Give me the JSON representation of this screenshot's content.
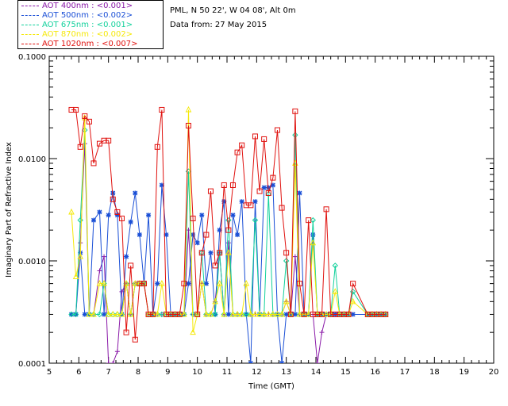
{
  "legend": [
    {
      "label": "AOT  400nm : <0.001>",
      "color": "#8a1aa8"
    },
    {
      "label": "AOT  500nm : <0.002>",
      "color": "#1a4fd6"
    },
    {
      "label": "AOT  675nm : <0.001>",
      "color": "#13d19c"
    },
    {
      "label": "AOT  870nm : <0.002>",
      "color": "#f5e90a"
    },
    {
      "label": "AOT 1020nm : <0.007>",
      "color": "#e0120f"
    }
  ],
  "info": {
    "site": "PML, N 50 22', W 04 08', Alt 0m",
    "date_line": "Data from: 27 May 2015"
  },
  "chart_data": {
    "type": "line",
    "xlabel": "Time (GMT)",
    "ylabel": "Imaginary Part of Refractive Index",
    "xlim": [
      5,
      20
    ],
    "ylim": [
      0.0001,
      0.1
    ],
    "y_scale": "log",
    "x_ticks": [
      "5",
      "6",
      "7",
      "8",
      "9",
      "10",
      "11",
      "12",
      "13",
      "14",
      "15",
      "16",
      "17",
      "18",
      "19",
      "20"
    ],
    "y_ticks": [
      "0.0001",
      "0.0010",
      "0.0100",
      "0.1000"
    ],
    "series": [
      {
        "name": "AOT  400nm : <0.001>",
        "marker": "plus",
        "color": "#8a1aa8",
        "x": [
          5.75,
          5.9,
          6.05,
          6.2,
          6.35,
          6.5,
          6.7,
          6.85,
          7.0,
          7.15,
          7.3,
          7.45,
          7.6,
          7.75,
          7.9,
          8.05,
          8.2,
          8.35,
          8.5,
          8.65,
          8.8,
          8.95,
          9.1,
          9.25,
          9.4,
          9.55,
          9.7,
          9.85,
          10.0,
          10.15,
          10.3,
          10.45,
          10.6,
          10.75,
          10.9,
          11.05,
          11.2,
          11.35,
          11.5,
          11.65,
          11.8,
          11.95,
          12.1,
          12.25,
          12.4,
          12.55,
          12.7,
          12.85,
          13.0,
          13.15,
          13.3,
          13.45,
          13.6,
          13.75,
          13.9,
          14.05,
          14.2,
          14.35,
          14.5,
          14.65,
          14.8,
          14.95,
          15.1,
          15.25,
          15.75,
          15.9,
          16.05,
          16.2,
          16.35
        ],
        "y": [
          0.0003,
          0.0003,
          0.0015,
          0.014,
          0.0003,
          0.0003,
          0.0008,
          0.0011,
          0.0001,
          0.0001,
          0.00013,
          0.0005,
          0.0006,
          0.0003,
          0.0006,
          0.0006,
          0.0006,
          0.0003,
          0.0003,
          0.0003,
          0.0003,
          0.0003,
          0.0003,
          0.0003,
          0.0003,
          0.0003,
          0.002,
          0.0003,
          0.0003,
          0.0006,
          0.0003,
          0.0003,
          0.0004,
          0.0012,
          0.0003,
          0.0015,
          0.0003,
          0.0003,
          0.0003,
          0.0003,
          0.0003,
          0.0003,
          0.0003,
          0.0003,
          0.0003,
          0.0003,
          0.0003,
          0.0003,
          0.0004,
          0.0003,
          0.0011,
          0.0003,
          0.0003,
          0.0003,
          0.0003,
          0.0001,
          0.0002,
          0.0003,
          0.0003,
          0.0003,
          0.0003,
          0.0003,
          0.0003,
          0.0003,
          0.0003,
          0.0003,
          0.0003,
          0.0003,
          0.0003
        ]
      },
      {
        "name": "AOT  500nm : <0.002>",
        "marker": "asterisk",
        "color": "#1a4fd6",
        "x": [
          5.75,
          5.9,
          6.05,
          6.2,
          6.35,
          6.5,
          6.7,
          6.85,
          7.0,
          7.15,
          7.3,
          7.45,
          7.6,
          7.75,
          7.9,
          8.05,
          8.2,
          8.35,
          8.5,
          8.65,
          8.8,
          8.95,
          9.1,
          9.25,
          9.4,
          9.55,
          9.7,
          9.85,
          10.0,
          10.15,
          10.3,
          10.45,
          10.6,
          10.75,
          10.9,
          11.05,
          11.2,
          11.35,
          11.5,
          11.65,
          11.8,
          11.95,
          12.1,
          12.25,
          12.4,
          12.55,
          12.7,
          12.85,
          13.0,
          13.15,
          13.3,
          13.45,
          13.6,
          13.75,
          13.9,
          14.05,
          14.2,
          14.35,
          14.5,
          14.65,
          14.8,
          14.95,
          15.1,
          15.25,
          15.75,
          15.9,
          16.05,
          16.2,
          16.35
        ],
        "y": [
          0.0003,
          0.0003,
          0.0012,
          0.0003,
          0.0003,
          0.0025,
          0.003,
          0.0003,
          0.0028,
          0.0046,
          0.0028,
          0.0003,
          0.0011,
          0.0024,
          0.0046,
          0.0018,
          0.0006,
          0.0028,
          0.0003,
          0.0006,
          0.0055,
          0.0018,
          0.0003,
          0.0003,
          0.0003,
          0.0003,
          0.0006,
          0.0018,
          0.0015,
          0.0028,
          0.0006,
          0.0012,
          0.0003,
          0.002,
          0.0038,
          0.0003,
          0.0028,
          0.0018,
          0.0038,
          0.0003,
          0.0001,
          0.0038,
          0.0003,
          0.0052,
          0.0052,
          0.0055,
          0.0003,
          0.0001,
          0.0003,
          0.0003,
          0.0003,
          0.0046,
          0.0003,
          0.0003,
          0.0018,
          0.0003,
          0.0003,
          0.0003,
          0.0003,
          0.0003,
          0.0003,
          0.0003,
          0.0003,
          0.0003,
          0.0003,
          0.0003,
          0.0003,
          0.0003,
          0.0003
        ]
      },
      {
        "name": "AOT  675nm : <0.001>",
        "marker": "diamond",
        "color": "#13d19c",
        "x": [
          5.75,
          5.9,
          6.05,
          6.2,
          6.35,
          6.5,
          6.7,
          6.85,
          7.0,
          7.15,
          7.3,
          7.45,
          7.6,
          7.75,
          7.9,
          8.05,
          8.2,
          8.35,
          8.5,
          8.65,
          8.8,
          8.95,
          9.1,
          9.25,
          9.4,
          9.55,
          9.7,
          9.85,
          10.0,
          10.15,
          10.3,
          10.45,
          10.6,
          10.75,
          10.9,
          11.05,
          11.2,
          11.35,
          11.5,
          11.65,
          11.8,
          11.95,
          12.1,
          12.25,
          12.4,
          12.55,
          12.7,
          12.85,
          13.0,
          13.15,
          13.3,
          13.45,
          13.6,
          13.75,
          13.9,
          14.05,
          14.2,
          14.35,
          14.5,
          14.65,
          14.8,
          14.95,
          15.1,
          15.25,
          15.75,
          15.9,
          16.05,
          16.2,
          16.35
        ],
        "y": [
          0.0003,
          0.0003,
          0.0025,
          0.019,
          0.0003,
          0.0003,
          0.0003,
          0.0006,
          0.0003,
          0.0003,
          0.0003,
          0.0003,
          0.0006,
          0.0003,
          0.0006,
          0.0006,
          0.0006,
          0.0003,
          0.0003,
          0.0003,
          0.0003,
          0.0003,
          0.0003,
          0.0003,
          0.0003,
          0.0003,
          0.0075,
          0.0003,
          0.0003,
          0.0012,
          0.0003,
          0.0003,
          0.0003,
          0.0012,
          0.0003,
          0.0025,
          0.0003,
          0.0003,
          0.0003,
          0.0003,
          0.0003,
          0.0025,
          0.0003,
          0.0003,
          0.0045,
          0.0003,
          0.0003,
          0.0003,
          0.001,
          0.0003,
          0.017,
          0.0003,
          0.0003,
          0.0003,
          0.0025,
          0.0003,
          0.0003,
          0.0003,
          0.0003,
          0.0009,
          0.0003,
          0.0003,
          0.0003,
          0.0005,
          0.0003,
          0.0003,
          0.0003,
          0.0003,
          0.0003
        ]
      },
      {
        "name": "AOT  870nm : <0.002>",
        "marker": "triangle",
        "color": "#f5e90a",
        "x": [
          5.75,
          5.9,
          6.05,
          6.2,
          6.35,
          6.5,
          6.7,
          6.85,
          7.0,
          7.15,
          7.3,
          7.45,
          7.6,
          7.75,
          7.9,
          8.05,
          8.2,
          8.35,
          8.5,
          8.65,
          8.8,
          8.95,
          9.1,
          9.25,
          9.4,
          9.55,
          9.7,
          9.85,
          10.0,
          10.15,
          10.3,
          10.45,
          10.6,
          10.75,
          10.9,
          11.05,
          11.2,
          11.35,
          11.5,
          11.65,
          11.8,
          11.95,
          12.1,
          12.25,
          12.4,
          12.55,
          12.7,
          12.85,
          13.0,
          13.15,
          13.3,
          13.45,
          13.6,
          13.75,
          13.9,
          14.05,
          14.2,
          14.35,
          14.5,
          14.65,
          14.8,
          14.95,
          15.1,
          15.25,
          15.75,
          15.9,
          16.05,
          16.2,
          16.35
        ],
        "y": [
          0.003,
          0.0007,
          0.0011,
          0.025,
          0.0003,
          0.0003,
          0.0006,
          0.0006,
          0.0003,
          0.0003,
          0.0003,
          0.0003,
          0.0006,
          0.0003,
          0.0006,
          0.0006,
          0.0006,
          0.0003,
          0.0003,
          0.0003,
          0.0006,
          0.0003,
          0.0003,
          0.0003,
          0.0003,
          0.0003,
          0.03,
          0.0002,
          0.0003,
          0.0006,
          0.0003,
          0.0003,
          0.0004,
          0.0006,
          0.0003,
          0.0012,
          0.0003,
          0.0003,
          0.0003,
          0.0006,
          0.0003,
          0.0003,
          0.0003,
          0.0003,
          0.0003,
          0.0003,
          0.0003,
          0.0003,
          0.0004,
          0.0003,
          0.009,
          0.0003,
          0.0003,
          0.0003,
          0.0015,
          0.0003,
          0.0003,
          0.0003,
          0.0003,
          0.0005,
          0.0003,
          0.0003,
          0.0003,
          0.0004,
          0.0003,
          0.0003,
          0.0003,
          0.0003,
          0.0003
        ]
      },
      {
        "name": "AOT 1020nm : <0.007>",
        "marker": "square",
        "color": "#e0120f",
        "x": [
          5.75,
          5.9,
          6.05,
          6.2,
          6.35,
          6.5,
          6.7,
          6.85,
          7.0,
          7.15,
          7.3,
          7.45,
          7.6,
          7.75,
          7.9,
          8.05,
          8.2,
          8.35,
          8.5,
          8.65,
          8.8,
          8.95,
          9.1,
          9.25,
          9.4,
          9.55,
          9.7,
          9.85,
          10.0,
          10.15,
          10.3,
          10.45,
          10.6,
          10.75,
          10.9,
          11.05,
          11.2,
          11.35,
          11.5,
          11.65,
          11.8,
          11.95,
          12.1,
          12.25,
          12.4,
          12.55,
          12.7,
          12.85,
          13.0,
          13.15,
          13.3,
          13.45,
          13.6,
          13.75,
          13.9,
          14.05,
          14.2,
          14.35,
          14.5,
          14.65,
          14.8,
          14.95,
          15.1,
          15.25,
          15.75,
          15.9,
          16.05,
          16.2,
          16.35
        ],
        "y": [
          0.03,
          0.03,
          0.013,
          0.026,
          0.023,
          0.009,
          0.014,
          0.015,
          0.015,
          0.004,
          0.003,
          0.0026,
          0.0002,
          0.0009,
          0.00017,
          0.0006,
          0.0006,
          0.0003,
          0.0003,
          0.013,
          0.03,
          0.0003,
          0.0003,
          0.0003,
          0.0003,
          0.0006,
          0.021,
          0.0026,
          0.0003,
          0.0012,
          0.0018,
          0.0048,
          0.0009,
          0.0012,
          0.0055,
          0.002,
          0.0055,
          0.0115,
          0.0135,
          0.0035,
          0.0035,
          0.0165,
          0.0048,
          0.0155,
          0.0046,
          0.0065,
          0.019,
          0.0033,
          0.0012,
          0.0003,
          0.029,
          0.0006,
          0.0003,
          0.0025,
          0.0003,
          0.0003,
          0.0003,
          0.0032,
          0.0003,
          0.0003,
          0.0003,
          0.0003,
          0.0003,
          0.0006,
          0.0003,
          0.0003,
          0.0003,
          0.0003,
          0.0003
        ]
      }
    ]
  }
}
